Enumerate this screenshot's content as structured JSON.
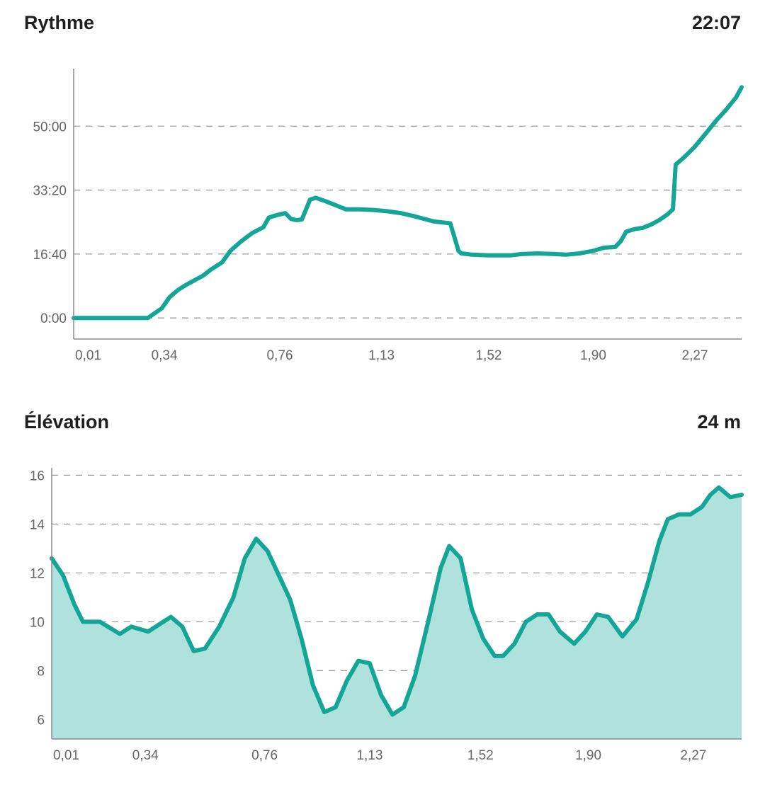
{
  "pace": {
    "title": "Rythme",
    "summary": "22:07"
  },
  "elevation": {
    "title": "Élévation",
    "summary": "24 m"
  },
  "colors": {
    "line": "#13a697",
    "fill": "#b0e2dd",
    "grid": "#9e9e9e",
    "text": "#1f1f1f"
  },
  "chart_data": [
    {
      "type": "line",
      "title": "Rythme",
      "xlabel": "",
      "ylabel": "",
      "x_tick_labels": [
        "0,01",
        "0,34",
        "0,76",
        "1,13",
        "1,52",
        "1,90",
        "2,27"
      ],
      "x_tick_values": [
        0.01,
        0.34,
        0.76,
        1.13,
        1.52,
        1.9,
        2.27
      ],
      "y_tick_labels": [
        "0:00",
        "16:40",
        "33:20",
        "50:00"
      ],
      "y_tick_values_seconds": [
        0,
        1000,
        2000,
        3000
      ],
      "xlim": [
        0.01,
        2.44
      ],
      "ylim_seconds": [
        -330,
        3900
      ],
      "grid": true,
      "series": [
        {
          "x": [
            0.01,
            0.28,
            0.3,
            0.33,
            0.36,
            0.39,
            0.42,
            0.45,
            0.48,
            0.51,
            0.55,
            0.58,
            0.62,
            0.66,
            0.7,
            0.72,
            0.75,
            0.78,
            0.8,
            0.82,
            0.84,
            0.87,
            0.89,
            0.91,
            0.93,
            0.96,
            1.0,
            1.05,
            1.1,
            1.15,
            1.2,
            1.25,
            1.32,
            1.38,
            1.41,
            1.42,
            1.46,
            1.52,
            1.6,
            1.64,
            1.7,
            1.76,
            1.8,
            1.85,
            1.9,
            1.94,
            1.98,
            2.0,
            2.02,
            2.05,
            2.08,
            2.11,
            2.14,
            2.17,
            2.19,
            2.2,
            2.23,
            2.27,
            2.31,
            2.35,
            2.38,
            2.42,
            2.44
          ],
          "y_seconds": [
            0,
            0,
            60,
            150,
            330,
            440,
            520,
            590,
            660,
            760,
            870,
            1050,
            1200,
            1330,
            1420,
            1570,
            1610,
            1640,
            1550,
            1530,
            1540,
            1850,
            1880,
            1850,
            1820,
            1770,
            1700,
            1700,
            1690,
            1670,
            1640,
            1590,
            1510,
            1480,
            1050,
            1010,
            990,
            980,
            980,
            1000,
            1010,
            1000,
            990,
            1010,
            1050,
            1100,
            1110,
            1200,
            1350,
            1390,
            1410,
            1460,
            1530,
            1620,
            1700,
            2400,
            2510,
            2680,
            2890,
            3100,
            3240,
            3450,
            3610
          ]
        }
      ]
    },
    {
      "type": "area",
      "title": "Élévation",
      "xlabel": "",
      "ylabel": "",
      "x_tick_labels": [
        "0,01",
        "0,34",
        "0,76",
        "1,13",
        "1,52",
        "1,90",
        "2,27"
      ],
      "x_tick_values": [
        0.01,
        0.34,
        0.76,
        1.13,
        1.52,
        1.9,
        2.27
      ],
      "y_tick_labels": [
        "6",
        "8",
        "10",
        "12",
        "14",
        "16"
      ],
      "y_tick_values": [
        6,
        8,
        10,
        12,
        14,
        16
      ],
      "xlim": [
        0.01,
        2.44
      ],
      "ylim": [
        5.2,
        16.3
      ],
      "grid": true,
      "series": [
        {
          "x": [
            0.01,
            0.05,
            0.09,
            0.12,
            0.18,
            0.25,
            0.29,
            0.35,
            0.39,
            0.43,
            0.47,
            0.51,
            0.55,
            0.6,
            0.65,
            0.69,
            0.73,
            0.77,
            0.81,
            0.85,
            0.89,
            0.93,
            0.97,
            1.01,
            1.05,
            1.09,
            1.13,
            1.17,
            1.21,
            1.25,
            1.29,
            1.34,
            1.38,
            1.41,
            1.45,
            1.49,
            1.53,
            1.57,
            1.6,
            1.64,
            1.68,
            1.72,
            1.76,
            1.8,
            1.85,
            1.89,
            1.93,
            1.97,
            2.02,
            2.07,
            2.11,
            2.15,
            2.18,
            2.22,
            2.26,
            2.3,
            2.33,
            2.36,
            2.4,
            2.44
          ],
          "y": [
            12.6,
            11.9,
            10.7,
            10.0,
            10.0,
            9.5,
            9.8,
            9.6,
            9.9,
            10.2,
            9.8,
            8.8,
            8.9,
            9.8,
            11.0,
            12.6,
            13.4,
            12.9,
            11.9,
            10.9,
            9.3,
            7.4,
            6.3,
            6.5,
            7.6,
            8.4,
            8.3,
            7.0,
            6.2,
            6.5,
            7.8,
            10.2,
            12.2,
            13.1,
            12.6,
            10.5,
            9.3,
            8.6,
            8.6,
            9.1,
            10.0,
            10.3,
            10.3,
            9.6,
            9.1,
            9.6,
            10.3,
            10.2,
            9.4,
            10.1,
            11.6,
            13.3,
            14.2,
            14.4,
            14.4,
            14.7,
            15.2,
            15.5,
            15.1,
            15.2
          ]
        }
      ]
    }
  ]
}
